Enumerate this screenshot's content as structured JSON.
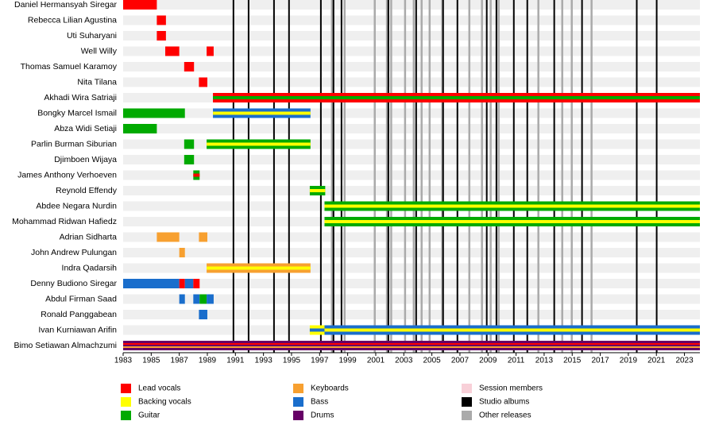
{
  "chart_data": {
    "type": "timeline",
    "xlim": [
      1983,
      2024.1
    ],
    "xticks": [
      1983,
      1985,
      1987,
      1989,
      1991,
      1993,
      1995,
      1997,
      1999,
      2001,
      2003,
      2005,
      2007,
      2009,
      2011,
      2013,
      2015,
      2017,
      2019,
      2021,
      2023
    ],
    "legend": [
      {
        "name": "Lead vocals",
        "color": "#ff0000"
      },
      {
        "name": "Backing vocals",
        "color": "#ffff00"
      },
      {
        "name": "Guitar",
        "color": "#00aa00"
      },
      {
        "name": "Keyboards",
        "color": "#f7a030"
      },
      {
        "name": "Bass",
        "color": "#1a6ecc"
      },
      {
        "name": "Drums",
        "color": "#660066"
      },
      {
        "name": "Session members",
        "color": "#f8d0d8"
      },
      {
        "name": "Studio albums",
        "color": "#000000"
      },
      {
        "name": "Other releases",
        "color": "#aaaaaa"
      }
    ],
    "studio_albums": [
      1990.86,
      1991.94,
      1993.75,
      1994.82,
      1997.09,
      1997.99,
      1998.56,
      2001.9,
      2003.88,
      2005.8,
      2006.82,
      2008.91,
      2009.6,
      2010.84,
      2011.8,
      2013.72,
      2015.7,
      2019.6,
      2021.02
    ],
    "other_releases": [
      1997.88,
      1998.78,
      2000.93,
      2001.8,
      2002.1,
      2003.09,
      2003.71,
      2004.27,
      2004.84,
      2005.74,
      2007.67,
      2008.57,
      2009.19,
      2009.76,
      2012.59,
      2014.29,
      2014.97,
      2016.38
    ],
    "members": [
      {
        "name": "Daniel Hermansyah Siregar",
        "bars": [
          {
            "start": 1983,
            "end": 1985.4,
            "roles": [
              "Lead vocals"
            ]
          }
        ]
      },
      {
        "name": "Rebecca Lilian Agustina",
        "bars": [
          {
            "start": 1985.4,
            "end": 1986.05,
            "roles": [
              "Lead vocals"
            ]
          }
        ]
      },
      {
        "name": "Uti Suharyani",
        "bars": [
          {
            "start": 1985.4,
            "end": 1986.05,
            "roles": [
              "Lead vocals"
            ]
          }
        ]
      },
      {
        "name": "Well Willy",
        "bars": [
          {
            "start": 1986,
            "end": 1987,
            "roles": [
              "Lead vocals"
            ]
          },
          {
            "start": 1988.95,
            "end": 1989.45,
            "roles": [
              "Lead vocals"
            ]
          }
        ]
      },
      {
        "name": "Thomas Samuel Karamoy",
        "bars": [
          {
            "start": 1987.35,
            "end": 1988.05,
            "roles": [
              "Lead vocals"
            ]
          }
        ]
      },
      {
        "name": "Nita Tilana",
        "bars": [
          {
            "start": 1988.4,
            "end": 1989,
            "roles": [
              "Lead vocals"
            ]
          }
        ]
      },
      {
        "name": "Akhadi Wira Satriaji",
        "bars": [
          {
            "start": 1989.4,
            "end": 2024.1,
            "roles": [
              "Lead vocals",
              "Guitar"
            ]
          }
        ]
      },
      {
        "name": "Bongky Marcel Ismail",
        "bars": [
          {
            "start": 1983,
            "end": 1987.4,
            "roles": [
              "Guitar"
            ]
          },
          {
            "start": 1989.4,
            "end": 1996.35,
            "roles": [
              "Bass",
              "Backing vocals"
            ]
          }
        ]
      },
      {
        "name": "Abza Widi Setiaji",
        "bars": [
          {
            "start": 1983,
            "end": 1985.4,
            "roles": [
              "Guitar"
            ]
          }
        ]
      },
      {
        "name": "Parlin Burman Siburian",
        "bars": [
          {
            "start": 1987.35,
            "end": 1988.05,
            "roles": [
              "Guitar"
            ]
          },
          {
            "start": 1988.95,
            "end": 1996.35,
            "roles": [
              "Guitar",
              "Backing vocals"
            ]
          }
        ]
      },
      {
        "name": "Djimboen Wijaya",
        "bars": [
          {
            "start": 1987.35,
            "end": 1988.05,
            "roles": [
              "Guitar"
            ]
          }
        ]
      },
      {
        "name": "James Anthony Verhoeven",
        "bars": [
          {
            "start": 1988,
            "end": 1988.45,
            "roles": [
              "Guitar",
              "Lead vocals"
            ]
          }
        ]
      },
      {
        "name": "Reynold Effendy",
        "bars": [
          {
            "start": 1996.3,
            "end": 1997.4,
            "roles": [
              "Guitar",
              "Backing vocals"
            ]
          }
        ]
      },
      {
        "name": "Abdee Negara Nurdin",
        "bars": [
          {
            "start": 1997.35,
            "end": 2024.1,
            "roles": [
              "Guitar",
              "Backing vocals"
            ]
          }
        ]
      },
      {
        "name": "Mohammad Ridwan Hafiedz",
        "bars": [
          {
            "start": 1997.35,
            "end": 2024.1,
            "roles": [
              "Guitar",
              "Backing vocals"
            ]
          }
        ]
      },
      {
        "name": "Adrian Sidharta",
        "bars": [
          {
            "start": 1985.4,
            "end": 1987,
            "roles": [
              "Keyboards"
            ]
          },
          {
            "start": 1988.4,
            "end": 1989,
            "roles": [
              "Keyboards"
            ]
          }
        ]
      },
      {
        "name": "John Andrew Pulungan",
        "bars": [
          {
            "start": 1987,
            "end": 1987.4,
            "roles": [
              "Keyboards"
            ]
          }
        ]
      },
      {
        "name": "Indra Qadarsih",
        "bars": [
          {
            "start": 1988.95,
            "end": 1996.35,
            "roles": [
              "Keyboards",
              "Backing vocals"
            ]
          }
        ]
      },
      {
        "name": "Denny Budiono Siregar",
        "bars": [
          {
            "start": 1983,
            "end": 1987,
            "roles": [
              "Bass"
            ]
          },
          {
            "start": 1987,
            "end": 1987.4,
            "roles": [
              "Lead vocals"
            ]
          },
          {
            "start": 1987.4,
            "end": 1988,
            "roles": [
              "Bass"
            ]
          },
          {
            "start": 1988,
            "end": 1988.45,
            "roles": [
              "Lead vocals"
            ]
          }
        ]
      },
      {
        "name": "Abdul Firman Saad",
        "bars": [
          {
            "start": 1987,
            "end": 1987.4,
            "roles": [
              "Bass"
            ]
          },
          {
            "start": 1988,
            "end": 1988.45,
            "roles": [
              "Bass"
            ]
          },
          {
            "start": 1988.45,
            "end": 1988.95,
            "roles": [
              "Guitar"
            ]
          },
          {
            "start": 1988.95,
            "end": 1989.45,
            "roles": [
              "Bass"
            ]
          }
        ]
      },
      {
        "name": "Ronald Panggabean",
        "bars": [
          {
            "start": 1988.4,
            "end": 1989,
            "roles": [
              "Bass"
            ]
          }
        ]
      },
      {
        "name": "Ivan Kurniawan Arifin",
        "bars": [
          {
            "start": 1996.3,
            "end": 1997.4,
            "roles": [
              "Backing vocals",
              "Bass"
            ]
          },
          {
            "start": 1997.35,
            "end": 2024.1,
            "roles": [
              "Bass",
              "Backing vocals"
            ]
          }
        ]
      },
      {
        "name": "Bimo Setiawan Almachzumi",
        "bars": [
          {
            "start": 1983,
            "end": 2024.1,
            "roles": [
              "Drums",
              "Lead vocals",
              "Keyboards"
            ]
          }
        ]
      }
    ]
  }
}
